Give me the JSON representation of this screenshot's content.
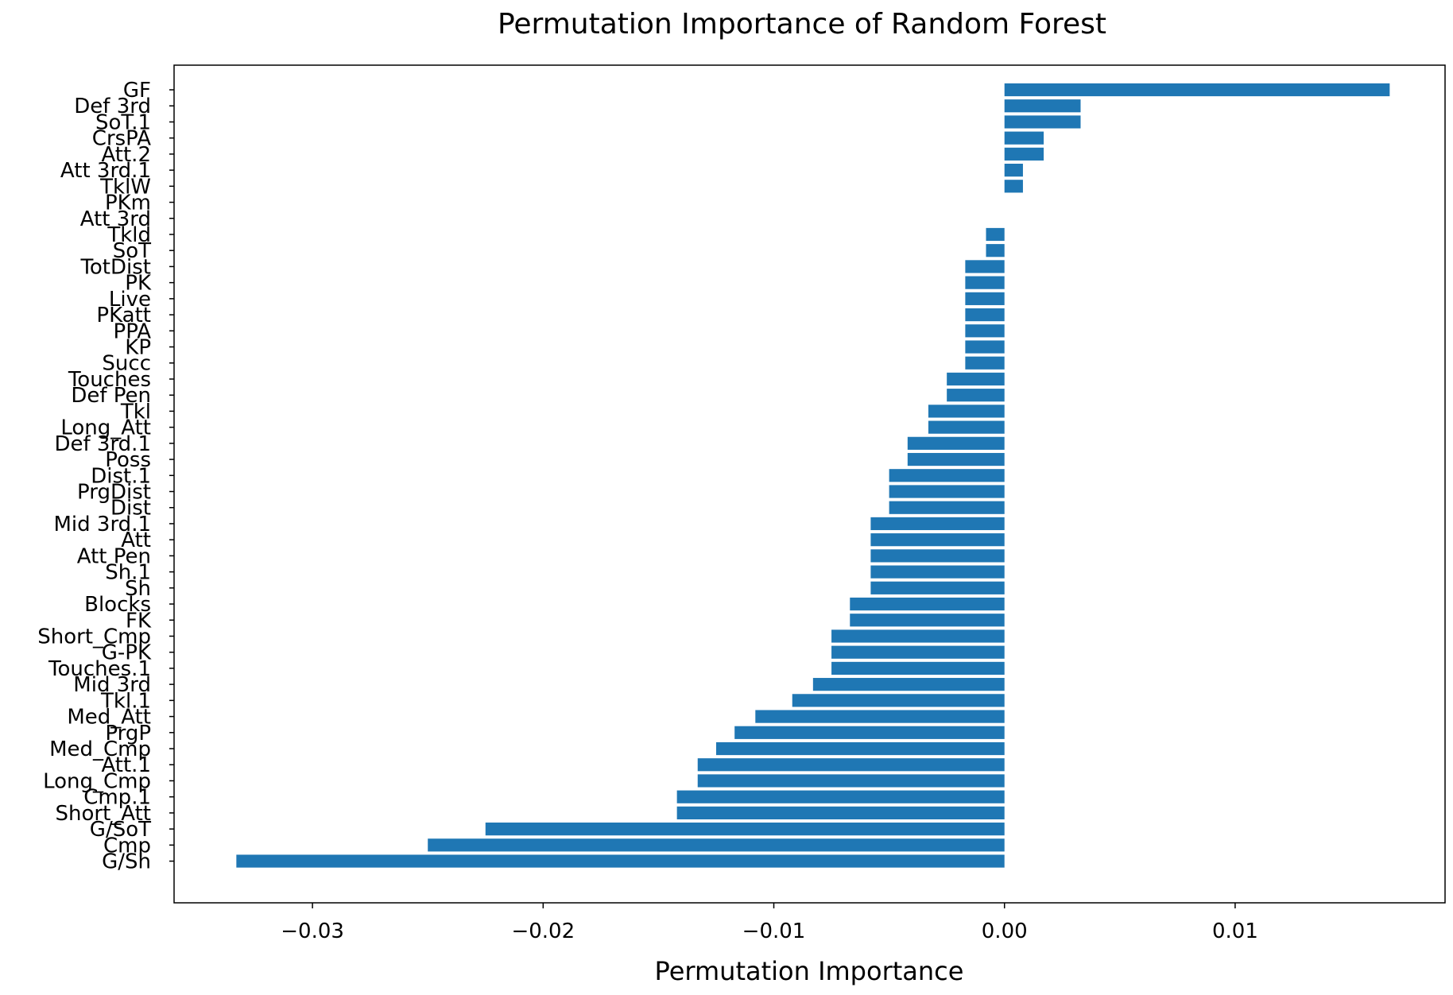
{
  "chart_data": {
    "type": "bar",
    "orientation": "horizontal",
    "title": "Permutation Importance of Random Forest",
    "xlabel": "Permutation Importance",
    "ylabel": "",
    "xlim": [
      -0.036,
      0.0191
    ],
    "x_ticks": [
      -0.03,
      -0.02,
      -0.01,
      0.0,
      0.01
    ],
    "x_tick_labels": [
      "−0.03",
      "−0.02",
      "−0.01",
      "0.00",
      "0.01"
    ],
    "bar_color": "#1f77b4",
    "grid": false,
    "categories": [
      "GF",
      "Def 3rd",
      "SoT.1",
      "CrsPA",
      "Att.2",
      "Att 3rd.1",
      "TklW",
      "PKm",
      "Att 3rd",
      "Tkld",
      "SoT",
      "TotDist",
      "PK",
      "Live",
      "PKatt",
      "PPA",
      "KP",
      "Succ",
      "Touches",
      "Def Pen",
      "Tkl",
      "Long_Att",
      "Def 3rd.1",
      "Poss",
      "Dist.1",
      "PrgDist",
      "Dist",
      "Mid 3rd.1",
      "Att",
      "Att Pen",
      "Sh.1",
      "Sh",
      "Blocks",
      "FK",
      "Short_Cmp",
      "G-PK",
      "Touches.1",
      "Mid 3rd",
      "Tkl.1",
      "Med_Att",
      "PrgP",
      "Med_Cmp",
      "Att.1",
      "Long_Cmp",
      "Cmp.1",
      "Short_Att",
      "G/SoT",
      "Cmp",
      "G/Sh"
    ],
    "values": [
      0.0167,
      0.0033,
      0.0033,
      0.0017,
      0.0017,
      0.0008,
      0.0008,
      0.0,
      0.0,
      -0.0008,
      -0.0008,
      -0.0017,
      -0.0017,
      -0.0017,
      -0.0017,
      -0.0017,
      -0.0017,
      -0.0017,
      -0.0025,
      -0.0025,
      -0.0033,
      -0.0033,
      -0.0042,
      -0.0042,
      -0.005,
      -0.005,
      -0.005,
      -0.0058,
      -0.0058,
      -0.0058,
      -0.0058,
      -0.0058,
      -0.0067,
      -0.0067,
      -0.0075,
      -0.0075,
      -0.0075,
      -0.0083,
      -0.0092,
      -0.0108,
      -0.0117,
      -0.0125,
      -0.0133,
      -0.0133,
      -0.0142,
      -0.0142,
      -0.0225,
      -0.025,
      -0.0333
    ]
  }
}
